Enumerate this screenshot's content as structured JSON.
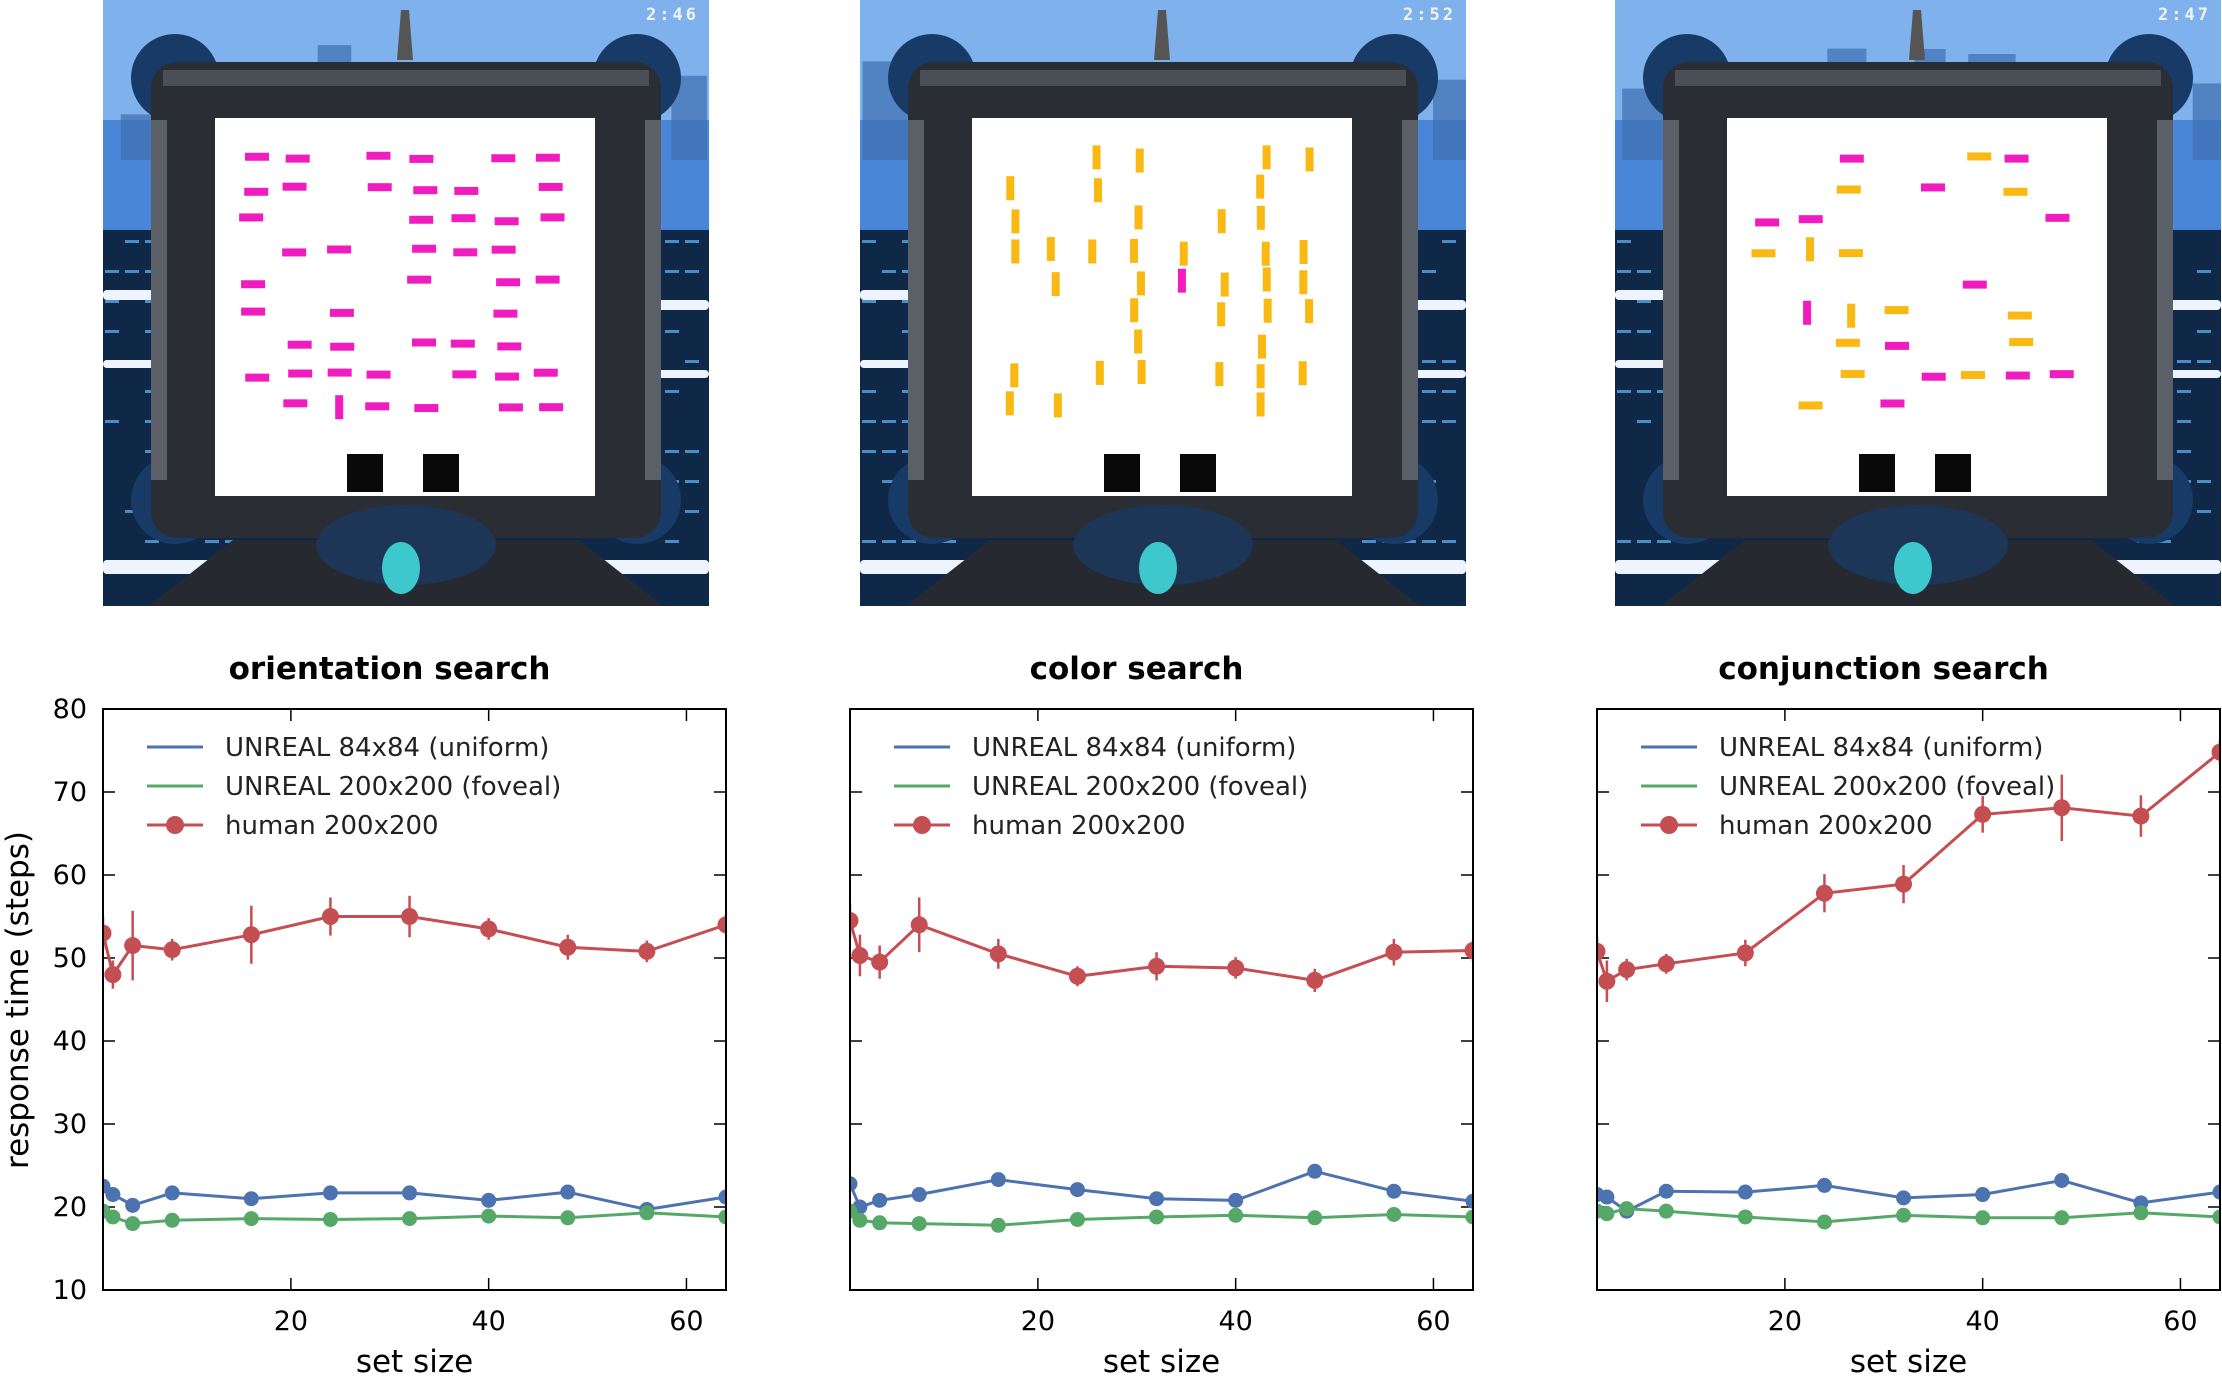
{
  "screens": [
    {
      "timer": "2:46",
      "task": "orientation"
    },
    {
      "timer": "2:52",
      "task": "color"
    },
    {
      "timer": "2:47",
      "task": "conjunction"
    }
  ],
  "colors": {
    "uniform": "#4c72b0",
    "foveal": "#55a868",
    "human": "#c44e52",
    "magenta": "#f01cc0",
    "yellow": "#f9b812",
    "tablet_frame": "#2a2d33",
    "sky": "#4a86d8",
    "cyan_orb": "#3cc8cc"
  },
  "y_axis_label": "response time (steps)",
  "chart_data": [
    {
      "type": "line",
      "title": "orientation search",
      "xlabel": "set size",
      "ylabel": "response time (steps)",
      "xlim": [
        1,
        64
      ],
      "ylim": [
        10,
        80
      ],
      "xticks": [
        20,
        40,
        60
      ],
      "yticks": [
        10,
        20,
        30,
        40,
        50,
        60,
        70,
        80
      ],
      "grid": false,
      "legend": "top-left",
      "x": [
        1,
        2,
        4,
        8,
        16,
        24,
        32,
        40,
        48,
        56,
        64
      ],
      "series": [
        {
          "name": "UNREAL 84x84 (uniform)",
          "key": "uniform",
          "marker": false,
          "values": [
            22.5,
            21.5,
            20.2,
            21.7,
            21.0,
            21.7,
            21.7,
            20.8,
            21.8,
            19.7,
            21.2
          ]
        },
        {
          "name": "UNREAL 200x200 (foveal)",
          "key": "foveal",
          "marker": false,
          "values": [
            19.5,
            18.8,
            18.0,
            18.4,
            18.6,
            18.5,
            18.6,
            18.9,
            18.7,
            19.3,
            18.8
          ]
        },
        {
          "name": "human 200x200",
          "key": "human",
          "marker": true,
          "values": [
            53.0,
            48.0,
            51.5,
            51.0,
            52.8,
            55.0,
            55.0,
            53.5,
            51.3,
            50.8,
            54.0
          ],
          "errors": [
            2.0,
            1.7,
            4.2,
            1.3,
            3.5,
            2.3,
            2.5,
            1.3,
            1.5,
            1.3,
            1.3
          ]
        }
      ]
    },
    {
      "type": "line",
      "title": "color search",
      "xlabel": "set size",
      "ylabel": "",
      "xlim": [
        1,
        64
      ],
      "ylim": [
        10,
        80
      ],
      "xticks": [
        20,
        40,
        60
      ],
      "yticks": [
        10,
        20,
        30,
        40,
        50,
        60,
        70,
        80
      ],
      "grid": false,
      "legend": "top-left",
      "x": [
        1,
        2,
        4,
        8,
        16,
        24,
        32,
        40,
        48,
        56,
        64
      ],
      "series": [
        {
          "name": "UNREAL 84x84 (uniform)",
          "key": "uniform",
          "marker": false,
          "values": [
            22.8,
            20.0,
            20.8,
            21.5,
            23.3,
            22.1,
            21.0,
            20.8,
            24.3,
            21.9,
            20.7
          ]
        },
        {
          "name": "UNREAL 200x200 (foveal)",
          "key": "foveal",
          "marker": false,
          "values": [
            19.5,
            18.4,
            18.1,
            18.0,
            17.8,
            18.5,
            18.8,
            19.0,
            18.7,
            19.1,
            18.8
          ]
        },
        {
          "name": "human 200x200",
          "key": "human",
          "marker": true,
          "values": [
            54.5,
            50.3,
            49.5,
            54.0,
            50.5,
            47.8,
            49.0,
            48.8,
            47.3,
            50.7,
            50.9
          ],
          "errors": [
            2.0,
            2.5,
            2.0,
            3.3,
            1.8,
            1.2,
            1.7,
            1.3,
            1.4,
            1.6,
            1.3
          ]
        }
      ]
    },
    {
      "type": "line",
      "title": "conjunction search",
      "xlabel": "set size",
      "ylabel": "",
      "xlim": [
        1,
        64
      ],
      "ylim": [
        10,
        80
      ],
      "xticks": [
        20,
        40,
        60
      ],
      "yticks": [
        10,
        20,
        30,
        40,
        50,
        60,
        70,
        80
      ],
      "grid": false,
      "legend": "top-left",
      "x": [
        1,
        2,
        4,
        8,
        16,
        24,
        32,
        40,
        48,
        56,
        64
      ],
      "series": [
        {
          "name": "UNREAL 84x84 (uniform)",
          "key": "uniform",
          "marker": false,
          "values": [
            21.5,
            21.2,
            19.5,
            21.9,
            21.8,
            22.6,
            21.1,
            21.5,
            23.2,
            20.5,
            21.8
          ]
        },
        {
          "name": "UNREAL 200x200 (foveal)",
          "key": "foveal",
          "marker": false,
          "values": [
            19.5,
            19.2,
            19.8,
            19.5,
            18.8,
            18.2,
            19.0,
            18.7,
            18.7,
            19.3,
            18.8
          ]
        },
        {
          "name": "human 200x200",
          "key": "human",
          "marker": true,
          "values": [
            50.8,
            47.2,
            48.6,
            49.3,
            50.6,
            57.8,
            58.9,
            67.3,
            68.1,
            67.1,
            74.8
          ],
          "errors": [
            1.8,
            2.5,
            1.3,
            1.2,
            1.6,
            2.3,
            2.3,
            2.2,
            4.0,
            2.5,
            1.5
          ]
        }
      ]
    }
  ]
}
